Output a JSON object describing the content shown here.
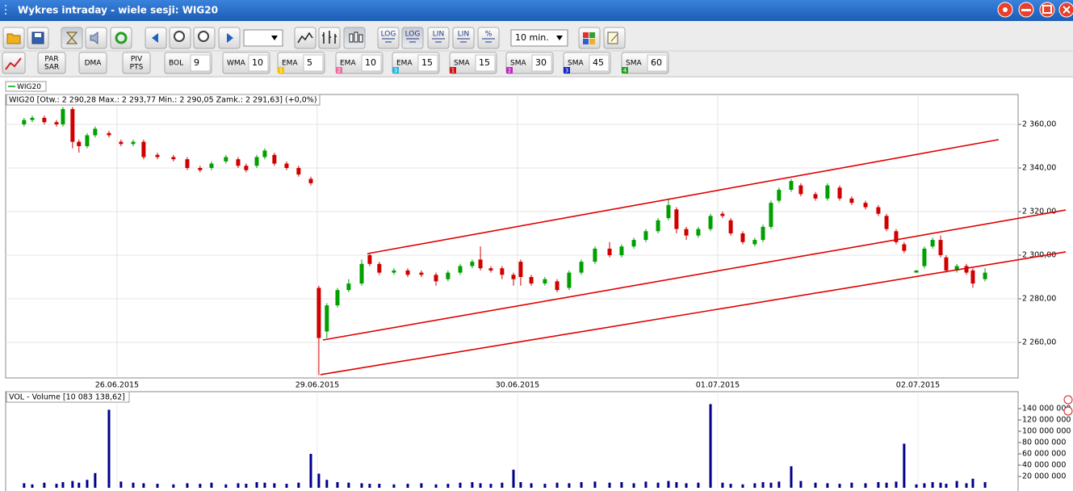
{
  "window": {
    "title": "Wykres intraday -  wiele sesji: WIG20"
  },
  "toolbar": {
    "buttons": [
      "LOG",
      "LOG",
      "LIN",
      "LIN",
      "%"
    ],
    "interval": "10 min.",
    "studies": [
      [
        "PAR",
        "SAR"
      ],
      "DMA",
      [
        "PIV",
        "PTS"
      ]
    ],
    "indicators": [
      {
        "name": "BOL",
        "period": 9
      },
      {
        "name": "WMA",
        "period": 10
      },
      {
        "name": "EMA",
        "period": 5,
        "slot": 1,
        "color": "#f5c400"
      },
      {
        "name": "EMA",
        "period": 10,
        "slot": 2,
        "color": "#f06aa0"
      },
      {
        "name": "EMA",
        "period": 15,
        "slot": 3,
        "color": "#28b4e0"
      },
      {
        "name": "SMA",
        "period": 15,
        "slot": 1,
        "color": "#d01010"
      },
      {
        "name": "SMA",
        "period": 30,
        "slot": 2,
        "color": "#c020c0"
      },
      {
        "name": "SMA",
        "period": 45,
        "slot": 3,
        "color": "#1020c0"
      },
      {
        "name": "SMA",
        "period": 60,
        "slot": 4,
        "color": "#20a020"
      }
    ]
  },
  "chart_data": {
    "type": "candlestick",
    "legend": "WIG20",
    "info": "WIG20 [Otw.: 2 290,28  Max.: 2 293,77  Min.: 2 290,05  Zamk.: 2 291,63] (+0,0%)",
    "up_color": "#00a000",
    "down_color": "#d00000",
    "grid": true,
    "xlim": [
      -0.556,
      4.5
    ],
    "xticks": [
      {
        "value": 0,
        "label": "26.06.2015"
      },
      {
        "value": 1,
        "label": "29.06.2015"
      },
      {
        "value": 2,
        "label": "30.06.2015"
      },
      {
        "value": 3,
        "label": "01.07.2015"
      },
      {
        "value": 4,
        "label": "02.07.2015"
      }
    ],
    "ylim": [
      2243.7,
      2373.7
    ],
    "yticks": [
      {
        "value": 2260,
        "label": "2 260,00"
      },
      {
        "value": 2280,
        "label": "2 280,00"
      },
      {
        "value": 2300,
        "label": "2 300,00"
      },
      {
        "value": 2320,
        "label": "2 320,00"
      },
      {
        "value": 2340,
        "label": "2 340,00"
      },
      {
        "value": 2360,
        "label": "2 360,00"
      }
    ],
    "candles": {
      "x": [
        -0.464,
        -0.423,
        -0.363,
        -0.302,
        -0.27,
        -0.222,
        -0.19,
        -0.149,
        -0.109,
        -0.04,
        0.02,
        0.081,
        0.133,
        0.202,
        0.282,
        0.351,
        0.415,
        0.472,
        0.544,
        0.605,
        0.645,
        0.698,
        0.738,
        0.786,
        0.847,
        0.907,
        0.968,
        1.008,
        1.048,
        1.101,
        1.157,
        1.222,
        1.262,
        1.31,
        1.383,
        1.452,
        1.52,
        1.593,
        1.653,
        1.714,
        1.774,
        1.815,
        1.867,
        1.923,
        1.98,
        2.016,
        2.069,
        2.137,
        2.198,
        2.258,
        2.319,
        2.387,
        2.46,
        2.52,
        2.581,
        2.641,
        2.702,
        2.754,
        2.794,
        2.843,
        2.903,
        2.964,
        3.024,
        3.065,
        3.125,
        3.185,
        3.226,
        3.266,
        3.306,
        3.367,
        3.415,
        3.488,
        3.548,
        3.609,
        3.669,
        3.738,
        3.802,
        3.843,
        3.891,
        3.931,
        3.992,
        4.032,
        4.073,
        4.113,
        4.141,
        4.194,
        4.242,
        4.274,
        4.335
      ],
      "open": [
        2360,
        2362,
        2363,
        2361,
        2360,
        2367,
        2352,
        2350,
        2355,
        2356,
        2352,
        2351,
        2352,
        2346,
        2345,
        2344,
        2340,
        2340,
        2343,
        2344,
        2341,
        2341,
        2345,
        2346,
        2342,
        2340,
        2335,
        2285,
        2265,
        2277,
        2284,
        2287,
        2300,
        2296,
        2292,
        2293,
        2292,
        2291,
        2289,
        2292,
        2295,
        2298,
        2294,
        2294,
        2291,
        2297,
        2290,
        2287,
        2288,
        2285,
        2292,
        2297,
        2303,
        2300,
        2304,
        2307,
        2311,
        2317,
        2321,
        2312,
        2309,
        2312,
        2319,
        2316,
        2310,
        2305,
        2307,
        2313,
        2325,
        2330,
        2332,
        2328,
        2326,
        2331,
        2326,
        2324,
        2322,
        2318,
        2311,
        2305,
        2292,
        2295,
        2304,
        2307,
        2299,
        2293,
        2295,
        2293,
        2289
      ],
      "high": [
        2363,
        2364,
        2364,
        2362,
        2368,
        2368,
        2353,
        2356,
        2359,
        2357,
        2353,
        2353,
        2353,
        2347,
        2346,
        2345,
        2341,
        2343,
        2346,
        2345,
        2342,
        2346,
        2349,
        2347,
        2343,
        2341,
        2336,
        2286,
        2278,
        2285,
        2289,
        2298,
        2301,
        2297,
        2294,
        2294,
        2293,
        2292,
        2293,
        2296,
        2298,
        2304,
        2295,
        2295,
        2292,
        2298,
        2291,
        2290,
        2289,
        2293,
        2298,
        2304,
        2306,
        2305,
        2308,
        2312,
        2317,
        2326,
        2322,
        2313,
        2313,
        2319,
        2320,
        2317,
        2311,
        2308,
        2314,
        2325,
        2331,
        2335,
        2333,
        2329,
        2333,
        2332,
        2327,
        2325,
        2323,
        2319,
        2312,
        2306,
        2293,
        2304,
        2308,
        2309,
        2300,
        2296,
        2296,
        2294,
        2294
      ],
      "low": [
        2359,
        2361,
        2360,
        2359,
        2359,
        2349,
        2347,
        2349,
        2354,
        2354,
        2350,
        2350,
        2344,
        2344,
        2343,
        2339,
        2338,
        2339,
        2342,
        2340,
        2338,
        2340,
        2344,
        2341,
        2339,
        2336,
        2332,
        2245,
        2262,
        2276,
        2283,
        2286,
        2295,
        2291,
        2291,
        2290,
        2290,
        2286,
        2288,
        2291,
        2294,
        2293,
        2292,
        2289,
        2286,
        2286,
        2286,
        2286,
        2283,
        2284,
        2291,
        2296,
        2299,
        2299,
        2303,
        2306,
        2310,
        2316,
        2310,
        2307,
        2308,
        2311,
        2317,
        2309,
        2305,
        2304,
        2306,
        2312,
        2324,
        2329,
        2327,
        2325,
        2325,
        2325,
        2323,
        2321,
        2318,
        2311,
        2305,
        2301,
        2292,
        2294,
        2303,
        2299,
        2292,
        2292,
        2291,
        2285,
        2288
      ],
      "close": [
        2362,
        2363,
        2361,
        2360,
        2367,
        2352,
        2350,
        2355,
        2358,
        2355,
        2351,
        2352,
        2345,
        2345,
        2344,
        2340,
        2339,
        2342,
        2345,
        2341,
        2339,
        2345,
        2348,
        2342,
        2340,
        2337,
        2333,
        2262,
        2277,
        2284,
        2287,
        2296,
        2296,
        2292,
        2293,
        2291,
        2291,
        2288,
        2292,
        2295,
        2297,
        2294,
        2293,
        2291,
        2289,
        2290,
        2287,
        2289,
        2284,
        2292,
        2297,
        2303,
        2300,
        2304,
        2307,
        2311,
        2316,
        2323,
        2312,
        2309,
        2312,
        2318,
        2318,
        2310,
        2306,
        2307,
        2313,
        2324,
        2330,
        2334,
        2328,
        2326,
        2332,
        2326,
        2324,
        2322,
        2319,
        2312,
        2306,
        2302,
        2293,
        2303,
        2307,
        2300,
        2293,
        2295,
        2292,
        2287,
        2292
      ]
    },
    "trendlines": [
      {
        "color": "#e00000",
        "x": [
          1.25,
          4.403
        ],
        "y": [
          2300.7,
          2353.0
        ]
      },
      {
        "color": "#e00000",
        "x": [
          1.028,
          4.738
        ],
        "y": [
          2261.1,
          2320.7
        ]
      },
      {
        "color": "#e00000",
        "x": [
          1.016,
          4.738
        ],
        "y": [
          2245.2,
          2301.5
        ]
      }
    ],
    "volume": {
      "label": "VOL - Volume [10 083 138,62]",
      "color": "#00008b",
      "ylim": [
        0,
        170000000
      ],
      "yticks": [
        {
          "value": 20000000,
          "label": "20 000 000"
        },
        {
          "value": 40000000,
          "label": "40 000 000"
        },
        {
          "value": 60000000,
          "label": "60 000 000"
        },
        {
          "value": 80000000,
          "label": "80 000 000"
        },
        {
          "value": 100000000,
          "label": "100 000 000"
        },
        {
          "value": 120000000,
          "label": "120 000 000"
        },
        {
          "value": 140000000,
          "label": "140 000 000"
        }
      ],
      "values": [
        8000000,
        6000000,
        9000000,
        7000000,
        10000000,
        12000000,
        9000000,
        14000000,
        26000000,
        138000000,
        11000000,
        9000000,
        8000000,
        7000000,
        6000000,
        8000000,
        7000000,
        9000000,
        6000000,
        8000000,
        7000000,
        10000000,
        9000000,
        8000000,
        7000000,
        9000000,
        60000000,
        25000000,
        14000000,
        10000000,
        9000000,
        8000000,
        7000000,
        7000000,
        6000000,
        7000000,
        8000000,
        6000000,
        7000000,
        9000000,
        10000000,
        8000000,
        7000000,
        9000000,
        32000000,
        10000000,
        8000000,
        7000000,
        9000000,
        8000000,
        10000000,
        11000000,
        9000000,
        10000000,
        8000000,
        11000000,
        9000000,
        12000000,
        10000000,
        8000000,
        9000000,
        148000000,
        9000000,
        7000000,
        6000000,
        8000000,
        10000000,
        9000000,
        11000000,
        38000000,
        12000000,
        9000000,
        8000000,
        7000000,
        9000000,
        8000000,
        10000000,
        9000000,
        11000000,
        78000000,
        6000000,
        8000000,
        10000000,
        9000000,
        7000000,
        12000000,
        8000000,
        16000000,
        10000000
      ]
    }
  }
}
